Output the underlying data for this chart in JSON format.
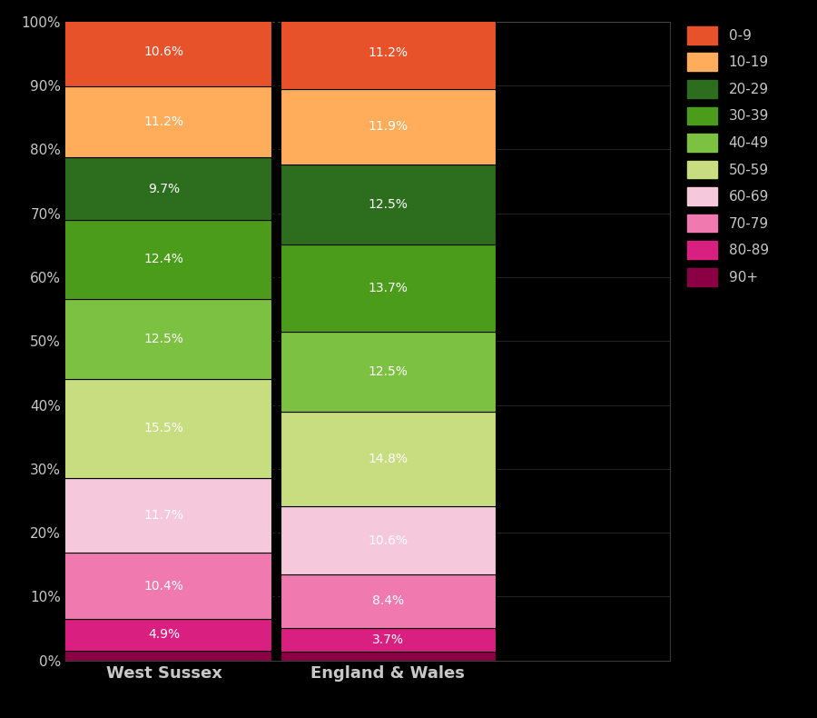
{
  "categories": [
    "West Sussex",
    "England & Wales"
  ],
  "age_groups_bottom_to_top": [
    "90+",
    "80-89",
    "70-79",
    "60-69",
    "50-59",
    "40-49",
    "30-39",
    "20-29",
    "10-19",
    "0-9"
  ],
  "west_sussex": {
    "90+": 1.6,
    "80-89": 4.9,
    "70-79": 10.4,
    "60-69": 11.7,
    "50-59": 15.5,
    "40-49": 12.5,
    "30-39": 12.4,
    "20-29": 9.7,
    "10-19": 11.2,
    "0-9": 10.6
  },
  "england_wales": {
    "90+": 1.4,
    "80-89": 3.7,
    "70-79": 8.4,
    "60-69": 10.6,
    "50-59": 14.8,
    "40-49": 12.5,
    "30-39": 13.7,
    "20-29": 12.5,
    "10-19": 11.9,
    "0-9": 11.2
  },
  "colors": {
    "0-9": "#E8522A",
    "10-19": "#FFAD5B",
    "20-29": "#2D6E1E",
    "30-39": "#4A9C1A",
    "40-49": "#7DC142",
    "50-59": "#C8DC80",
    "60-69": "#F5C8DC",
    "70-79": "#F07AB0",
    "80-89": "#D92080",
    "90+": "#8B0045"
  },
  "show_label": [
    "80-89",
    "70-79",
    "60-69",
    "50-59",
    "40-49",
    "30-39",
    "20-29",
    "10-19",
    "0-9"
  ],
  "background_color": "#000000",
  "text_color": "#C8C8C8",
  "label_color": "#FFFFFF",
  "bar_edge_color": "#000000",
  "yticks": [
    0,
    10,
    20,
    30,
    40,
    50,
    60,
    70,
    80,
    90,
    100
  ],
  "legend_order": [
    "0-9",
    "10-19",
    "20-29",
    "30-39",
    "40-49",
    "50-59",
    "60-69",
    "70-79",
    "80-89",
    "90+"
  ],
  "bar_positions": [
    0.22,
    0.72
  ],
  "bar_width": 0.48,
  "xlim": [
    0.0,
    1.35
  ],
  "font_size_ticks": 11,
  "font_size_labels": 13,
  "font_size_legend": 11
}
